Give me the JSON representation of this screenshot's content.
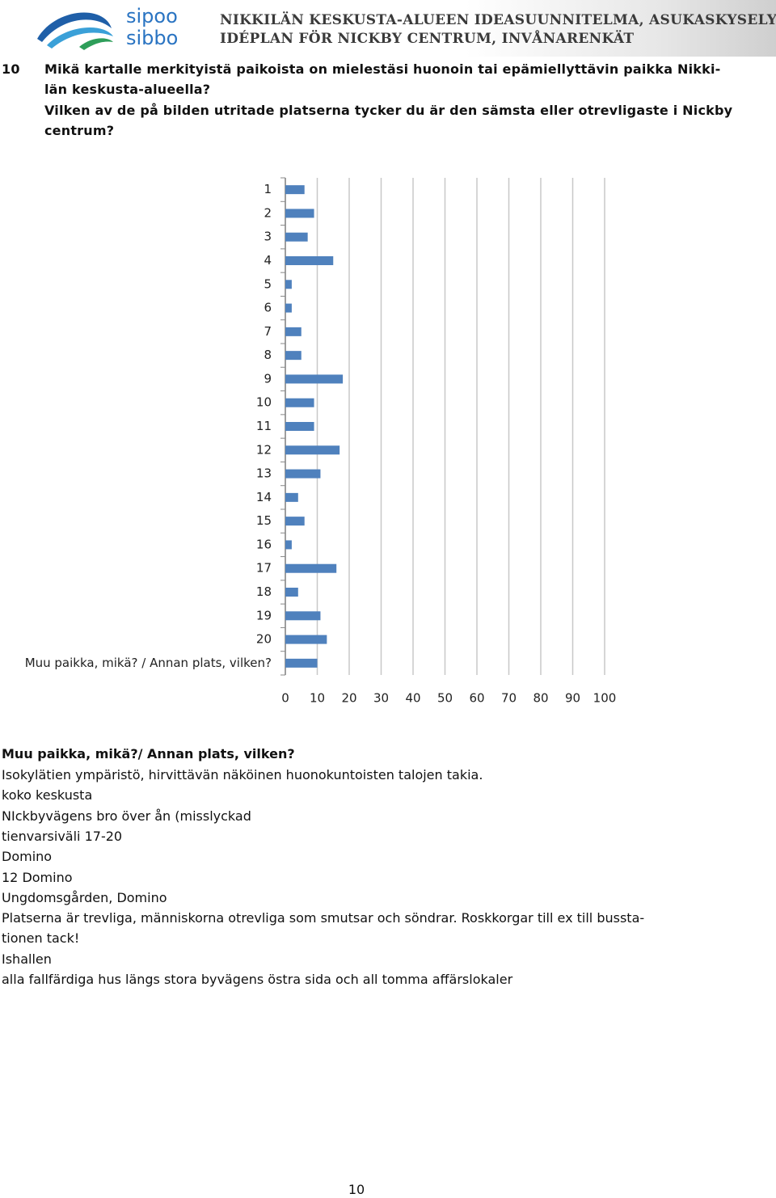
{
  "header": {
    "logo_lines": [
      "sipoo",
      "sibbo"
    ],
    "title_lines": [
      "NIKKILÄN KESKUSTA-ALUEEN IDEASUUNNITELMA, ASUKASKYSELY",
      "IDÉPLAN FÖR NICKBY CENTRUM, INVÅNARENKÄT"
    ]
  },
  "question": {
    "number": "10",
    "lines": [
      "Mikä kartalle merkityistä paikoista on mielestäsi huonoin tai epämiellyttävin paikka Nikki-",
      "län keskusta-alueella?",
      "Vilken av de på bilden utritade platserna tycker du är den sämsta eller otrevligaste i Nickby",
      "centrum?"
    ]
  },
  "chart_data": {
    "type": "bar",
    "orientation": "horizontal",
    "categories": [
      "1",
      "2",
      "3",
      "4",
      "5",
      "6",
      "7",
      "8",
      "9",
      "10",
      "11",
      "12",
      "13",
      "14",
      "15",
      "16",
      "17",
      "18",
      "19",
      "20",
      "Muu paikka, mikä? / Annan plats, vilken?"
    ],
    "values": [
      6,
      9,
      7,
      15,
      2,
      2,
      5,
      5,
      18,
      9,
      9,
      17,
      11,
      4,
      6,
      2,
      16,
      4,
      11,
      13,
      10
    ],
    "color": "#4f81bd",
    "xlim": [
      0,
      100
    ],
    "xticks": [
      0,
      10,
      20,
      30,
      40,
      50,
      60,
      70,
      80,
      90,
      100
    ],
    "grid": true
  },
  "answers": {
    "heading": "Muu paikka, mikä?/ Annan plats, vilken?",
    "lines": [
      "Isokylätien ympäristö, hirvittävän näköinen huonokuntoisten talojen takia.",
      "koko keskusta",
      "NIckbyvägens bro över ån (misslyckad",
      "tienvarsiväli 17-20",
      "Domino",
      "12 Domino",
      "Ungdomsgården, Domino",
      "Platserna är trevliga, människorna otrevliga som smutsar och söndrar. Roskkorgar till ex till bussta-",
      "tionen tack!",
      "Ishallen",
      "alla fallfärdiga hus längs stora byvägens östra sida och all tomma affärslokaler"
    ]
  },
  "page_number": "10"
}
